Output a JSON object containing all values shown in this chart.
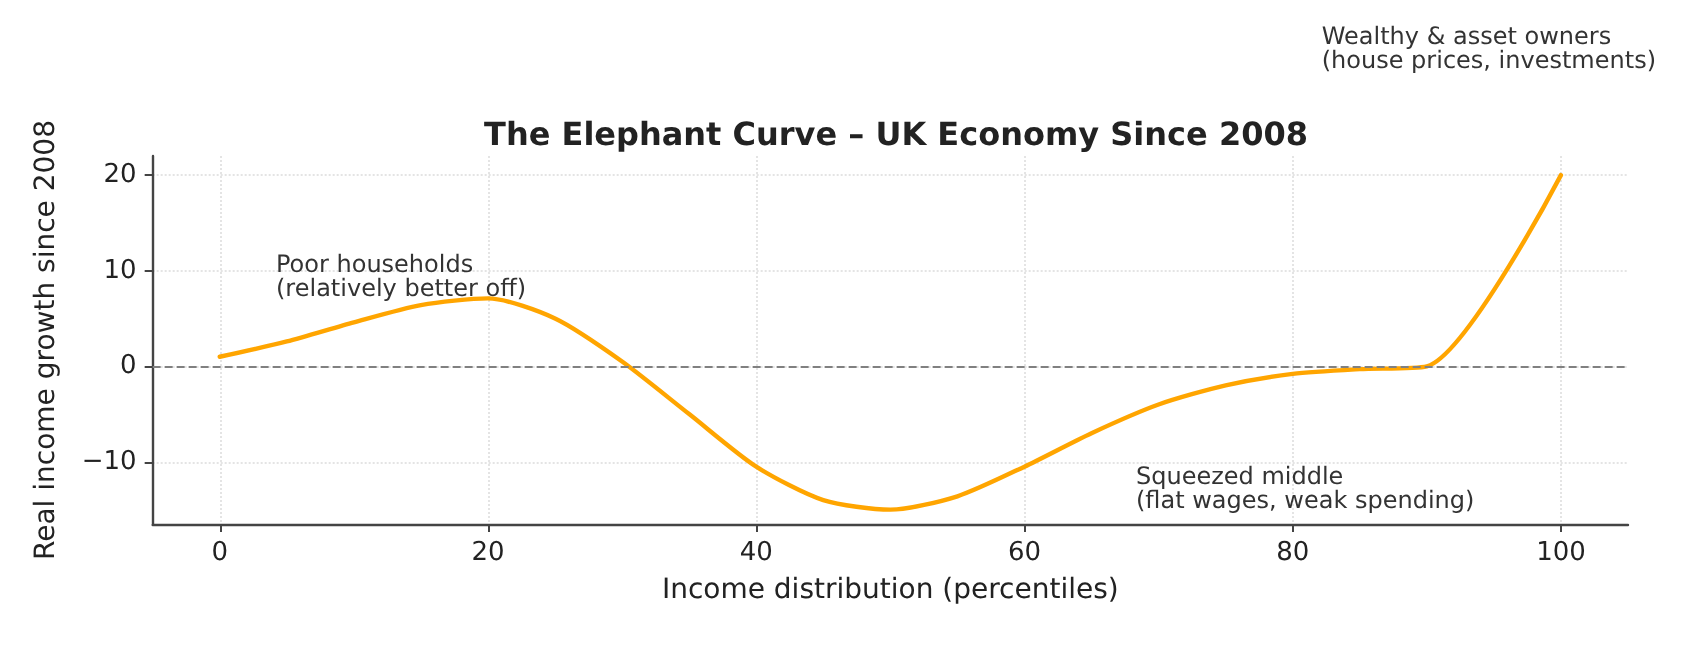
{
  "chart_data": {
    "type": "line",
    "title": "The Elephant Curve – UK Economy Since 2008",
    "xlabel": "Income distribution (percentiles)",
    "ylabel": "Real income growth since 2008",
    "x": [
      0,
      5,
      10,
      15,
      20,
      25,
      30,
      35,
      40,
      45,
      50,
      55,
      60,
      65,
      70,
      75,
      80,
      85,
      90,
      100
    ],
    "series": [
      {
        "color": "#ffa500",
        "values": [
          1,
          2.6,
          4.6,
          6.4,
          7.1,
          5,
          0.5,
          -5,
          -10.5,
          -14,
          -15,
          -13.6,
          -10.5,
          -7,
          -4,
          -2,
          -0.8,
          -0.3,
          0,
          20
        ]
      }
    ],
    "xlim": [
      -5,
      105
    ],
    "xticks": [
      0,
      20,
      40,
      60,
      80,
      100
    ],
    "ylim": [
      -16.5,
      22
    ],
    "yticks": [
      -10,
      0,
      10,
      20
    ],
    "grid": true,
    "marker": "none",
    "line_style": "solid",
    "ref_lines": [
      {
        "axis": "y",
        "value": 0,
        "color": "#808080",
        "line_style": "dashed"
      }
    ],
    "annotations": [
      "Poor households\n(relatively better off)",
      "Squeezed middle\n(flat wages, weak spending)",
      "Wealthy & asset owners\n(house prices, investments)"
    ]
  }
}
